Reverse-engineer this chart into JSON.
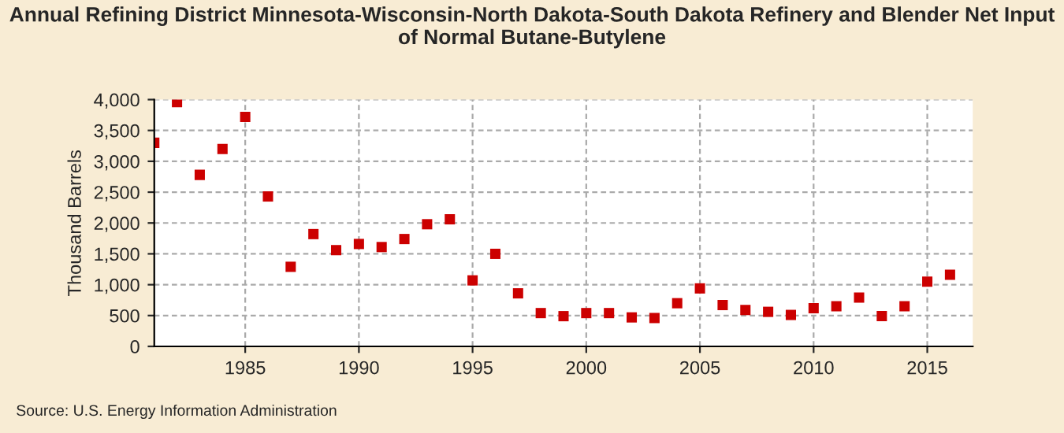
{
  "chart_data": {
    "type": "scatter",
    "title": "Annual Refining District Minnesota-Wisconsin-North Dakota-South Dakota Refinery and Blender Net Input of Normal Butane-Butylene",
    "ylabel": "Thousand Barrels",
    "x": [
      1981,
      1982,
      1983,
      1984,
      1985,
      1986,
      1987,
      1988,
      1989,
      1990,
      1991,
      1992,
      1993,
      1994,
      1995,
      1996,
      1997,
      1998,
      1999,
      2000,
      2001,
      2002,
      2003,
      2004,
      2005,
      2006,
      2007,
      2008,
      2009,
      2010,
      2011,
      2012,
      2013,
      2014,
      2015,
      2016
    ],
    "series": [
      {
        "color": "#cc0000",
        "values": [
          3300,
          3960,
          2780,
          3200,
          3720,
          2430,
          1290,
          1820,
          1560,
          1660,
          1610,
          1740,
          1980,
          2060,
          1070,
          1500,
          860,
          540,
          490,
          540,
          540,
          470,
          460,
          700,
          940,
          670,
          590,
          560,
          510,
          620,
          650,
          790,
          490,
          650,
          1050,
          1160
        ]
      }
    ],
    "xlim": [
      1981,
      2017
    ],
    "xticks": [
      1985,
      1990,
      1995,
      2000,
      2005,
      2010,
      2015
    ],
    "ylim": [
      0,
      4000
    ],
    "yticks": [
      {
        "value": 0,
        "label": "0"
      },
      {
        "value": 500,
        "label": "500"
      },
      {
        "value": 1000,
        "label": "1,000"
      },
      {
        "value": 1500,
        "label": "1,500"
      },
      {
        "value": 2000,
        "label": "2,000"
      },
      {
        "value": 2500,
        "label": "2,500"
      },
      {
        "value": 3000,
        "label": "3,000"
      },
      {
        "value": 3500,
        "label": "3,500"
      },
      {
        "value": 4000,
        "label": "4,000"
      }
    ],
    "grid": true,
    "marker": "square",
    "annotations": [
      "Source: U.S. Energy Information Administration"
    ]
  }
}
